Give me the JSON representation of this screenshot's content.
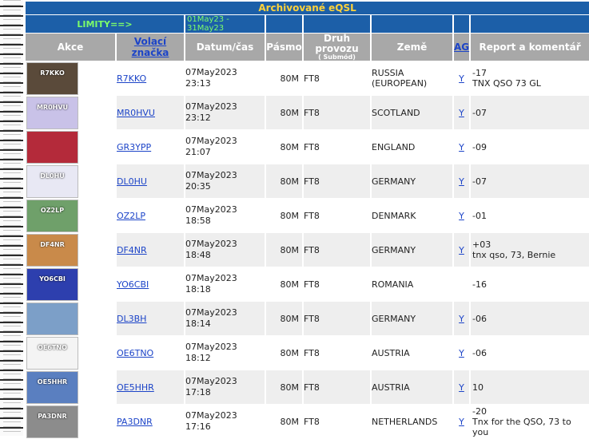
{
  "header": {
    "title": "Archivované eQSL",
    "limit_label": "LIMITY==>",
    "range": "01May23 - 31May23"
  },
  "columns": {
    "akce": "Akce",
    "call": "Volací značka",
    "date": "Datum/čas",
    "band": "Pásmo",
    "mode": "Druh provozu",
    "mode_sub": "( Submód)",
    "country": "Země",
    "ag": "AG",
    "report": "Report a komentář"
  },
  "rows": [
    {
      "call": "R7KKO",
      "date": "07May2023",
      "time": "23:13",
      "band": "80M",
      "mode": "FT8",
      "country": "RUSSIA (EUROPEAN)",
      "ag": "Y",
      "report": "-17",
      "comment": "TNX QSO 73 GL",
      "card_label": "R7KKO",
      "card_bg": "#5a4a3a"
    },
    {
      "call": "MR0HVU",
      "date": "07May2023",
      "time": "23:12",
      "band": "80M",
      "mode": "FT8",
      "country": "SCOTLAND",
      "ag": "Y",
      "report": "-07",
      "comment": "",
      "card_label": "MR0HVU",
      "card_bg": "#c9c2e8"
    },
    {
      "call": "GR3YPP",
      "date": "07May2023",
      "time": "21:07",
      "band": "80M",
      "mode": "FT8",
      "country": "ENGLAND",
      "ag": "Y",
      "report": "-09",
      "comment": "",
      "card_label": "",
      "card_bg": "#b42a3a"
    },
    {
      "call": "DL0HU",
      "date": "07May2023",
      "time": "20:35",
      "band": "80M",
      "mode": "FT8",
      "country": "GERMANY",
      "ag": "Y",
      "report": "-07",
      "comment": "",
      "card_label": "DL0HU",
      "card_bg": "#e8e8f4"
    },
    {
      "call": "OZ2LP",
      "date": "07May2023",
      "time": "18:58",
      "band": "80M",
      "mode": "FT8",
      "country": "DENMARK",
      "ag": "Y",
      "report": "-01",
      "comment": "",
      "card_label": "OZ2LP",
      "card_bg": "#6fa06a"
    },
    {
      "call": "DF4NR",
      "date": "07May2023",
      "time": "18:48",
      "band": "80M",
      "mode": "FT8",
      "country": "GERMANY",
      "ag": "Y",
      "report": "+03",
      "comment": "tnx qso, 73, Bernie",
      "card_label": "DF4NR",
      "card_bg": "#c98a4a"
    },
    {
      "call": "YO6CBI",
      "date": "07May2023",
      "time": "18:18",
      "band": "80M",
      "mode": "FT8",
      "country": "ROMANIA",
      "ag": "",
      "report": "-16",
      "comment": "",
      "card_label": "YO6CBI",
      "card_bg": "#2d3fae"
    },
    {
      "call": "DL3BH",
      "date": "07May2023",
      "time": "18:14",
      "band": "80M",
      "mode": "FT8",
      "country": "GERMANY",
      "ag": "Y",
      "report": "-06",
      "comment": "",
      "card_label": "",
      "card_bg": "#7c9fc8"
    },
    {
      "call": "OE6TNO",
      "date": "07May2023",
      "time": "18:12",
      "band": "80M",
      "mode": "FT8",
      "country": "AUSTRIA",
      "ag": "Y",
      "report": "-06",
      "comment": "",
      "card_label": "OE6TNO",
      "card_bg": "#f4f4f4"
    },
    {
      "call": "OE5HHR",
      "date": "07May2023",
      "time": "17:18",
      "band": "80M",
      "mode": "FT8",
      "country": "AUSTRIA",
      "ag": "Y",
      "report": "10",
      "comment": "",
      "card_label": "OE5HHR",
      "card_bg": "#5a7fc0"
    },
    {
      "call": "PA3DNR",
      "date": "07May2023",
      "time": "17:16",
      "band": "80M",
      "mode": "FT8",
      "country": "NETHERLANDS",
      "ag": "Y",
      "report": "-20",
      "comment": "Tnx for the QSO, 73 to you",
      "card_label": "PA3DNR",
      "card_bg": "#8c8c8c"
    }
  ]
}
